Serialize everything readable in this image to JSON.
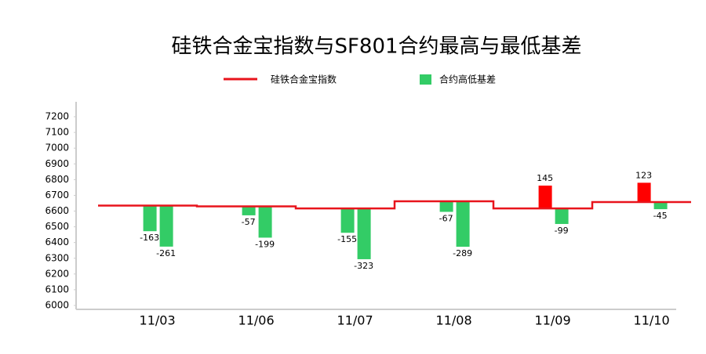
{
  "chart_data": {
    "type": "bar",
    "title": "硅铁合金宝指数与SF801合约最高与最低基差",
    "categories": [
      "11/03",
      "11/06",
      "11/07",
      "11/08",
      "11/09",
      "11/10"
    ],
    "ylim": [
      6000,
      7200
    ],
    "yticks": [
      6000,
      6100,
      6200,
      6300,
      6400,
      6500,
      6600,
      6700,
      6800,
      6900,
      7000,
      7100,
      7200
    ],
    "index": {
      "name": "硅铁合金宝指数",
      "color": "#e8141c",
      "values": [
        6635,
        6630,
        6617,
        6662,
        6617,
        6657
      ]
    },
    "basis": {
      "name": "合约高低基差",
      "color": "#33cc66",
      "positive_color": "#ff0000",
      "high": [
        -163,
        -57,
        -155,
        -67,
        145,
        123
      ],
      "low": [
        -261,
        -199,
        -323,
        -289,
        -99,
        -45
      ]
    }
  }
}
